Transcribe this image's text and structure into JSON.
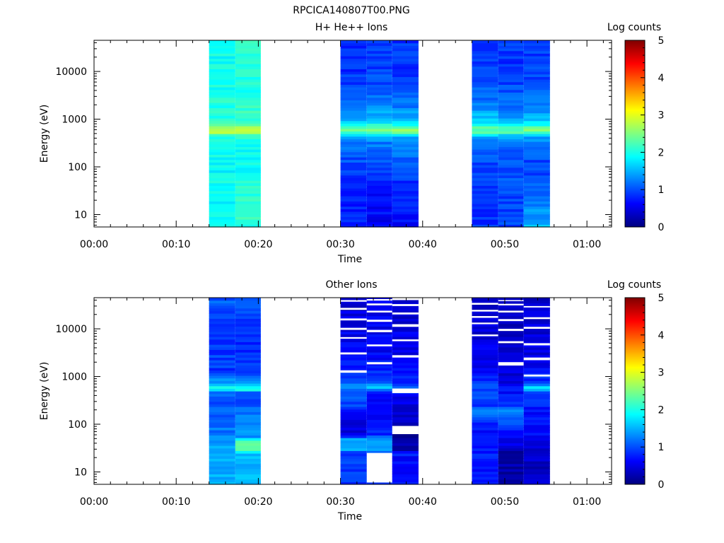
{
  "figure_title": "RPCICA140807T00.PNG",
  "colormap": [
    "#00007f",
    "#0000ff",
    "#0080ff",
    "#00ffff",
    "#80ff80",
    "#ffff00",
    "#ff8000",
    "#ff0000",
    "#7f0000"
  ],
  "chart_data": [
    {
      "type": "heatmap",
      "title": "H+ He++ Ions",
      "xlabel": "Time",
      "ylabel": "Energy (eV)",
      "xlim": [
        0,
        63
      ],
      "x_ticks": [
        "00:00",
        "00:10",
        "00:20",
        "00:30",
        "00:40",
        "00:50",
        "01:00"
      ],
      "y_scale": "log",
      "ylim": [
        5.5,
        45000
      ],
      "y_ticks": [
        "10",
        "100",
        "1000",
        "10000"
      ],
      "colorbar": {
        "label": "Log counts",
        "range": [
          0,
          5
        ],
        "ticks": [
          "0",
          "1",
          "2",
          "3",
          "4",
          "5"
        ]
      },
      "columns": [
        {
          "t0": 14,
          "t1": 17.2,
          "profile": [
            [
              6,
              1.9
            ],
            [
              30,
              1.9
            ],
            [
              60,
              1.9
            ],
            [
              120,
              1.85
            ],
            [
              280,
              2.0
            ],
            [
              470,
              2.1
            ],
            [
              560,
              2.9
            ],
            [
              680,
              2.7
            ],
            [
              800,
              2.1
            ],
            [
              1500,
              2.05
            ],
            [
              2500,
              2.0
            ],
            [
              6000,
              1.95
            ],
            [
              45000,
              1.9
            ]
          ]
        },
        {
          "t0": 17.2,
          "t1": 20.3,
          "profile": [
            [
              6,
              2.1
            ],
            [
              30,
              2.05
            ],
            [
              60,
              1.95
            ],
            [
              150,
              1.9
            ],
            [
              300,
              2.0
            ],
            [
              470,
              2.1
            ],
            [
              560,
              2.9
            ],
            [
              680,
              2.75
            ],
            [
              800,
              2.2
            ],
            [
              1500,
              2.1
            ],
            [
              3000,
              2.0
            ],
            [
              8000,
              2.0
            ],
            [
              45000,
              2.1
            ]
          ]
        },
        {
          "t0": 30,
          "t1": 33.2,
          "profile": [
            [
              6,
              0.75
            ],
            [
              25,
              0.8
            ],
            [
              60,
              0.9
            ],
            [
              150,
              1.0
            ],
            [
              300,
              1.2
            ],
            [
              450,
              1.4
            ],
            [
              560,
              2.5
            ],
            [
              700,
              2.2
            ],
            [
              900,
              1.6
            ],
            [
              2000,
              1.2
            ],
            [
              6000,
              0.9
            ],
            [
              20000,
              0.8
            ],
            [
              45000,
              0.9
            ]
          ]
        },
        {
          "t0": 33.2,
          "t1": 36.3,
          "profile": [
            [
              6,
              0.6
            ],
            [
              25,
              0.7
            ],
            [
              60,
              0.8
            ],
            [
              150,
              1.0
            ],
            [
              300,
              1.2
            ],
            [
              450,
              1.5
            ],
            [
              560,
              2.6
            ],
            [
              700,
              2.3
            ],
            [
              900,
              1.6
            ],
            [
              2000,
              1.3
            ],
            [
              6000,
              1.0
            ],
            [
              20000,
              0.9
            ],
            [
              45000,
              0.95
            ]
          ]
        },
        {
          "t0": 36.3,
          "t1": 39.5,
          "profile": [
            [
              6,
              0.65
            ],
            [
              25,
              0.75
            ],
            [
              60,
              0.9
            ],
            [
              150,
              1.1
            ],
            [
              300,
              1.2
            ],
            [
              450,
              1.5
            ],
            [
              560,
              2.6
            ],
            [
              700,
              2.3
            ],
            [
              900,
              1.6
            ],
            [
              2000,
              1.2
            ],
            [
              6000,
              0.95
            ],
            [
              20000,
              0.85
            ],
            [
              45000,
              0.9
            ]
          ]
        },
        {
          "t0": 46,
          "t1": 49.2,
          "profile": [
            [
              6,
              0.9
            ],
            [
              25,
              0.8
            ],
            [
              60,
              0.9
            ],
            [
              150,
              1.0
            ],
            [
              300,
              1.2
            ],
            [
              450,
              1.5
            ],
            [
              560,
              2.4
            ],
            [
              700,
              2.2
            ],
            [
              900,
              1.7
            ],
            [
              2000,
              1.2
            ],
            [
              6000,
              1.0
            ],
            [
              20000,
              0.9
            ],
            [
              45000,
              0.85
            ]
          ]
        },
        {
          "t0": 49.2,
          "t1": 52.3,
          "profile": [
            [
              6,
              0.95
            ],
            [
              25,
              0.95
            ],
            [
              60,
              1.0
            ],
            [
              150,
              1.05
            ],
            [
              300,
              1.2
            ],
            [
              450,
              1.5
            ],
            [
              560,
              2.4
            ],
            [
              700,
              2.2
            ],
            [
              900,
              1.5
            ],
            [
              2000,
              1.2
            ],
            [
              6000,
              0.95
            ],
            [
              20000,
              0.85
            ],
            [
              45000,
              0.9
            ]
          ]
        },
        {
          "t0": 52.3,
          "t1": 55.5,
          "profile": [
            [
              6,
              1.5
            ],
            [
              25,
              1.2
            ],
            [
              60,
              0.9
            ],
            [
              150,
              1.0
            ],
            [
              300,
              1.2
            ],
            [
              450,
              1.5
            ],
            [
              560,
              2.6
            ],
            [
              700,
              2.3
            ],
            [
              900,
              1.6
            ],
            [
              2000,
              1.2
            ],
            [
              6000,
              1.0
            ],
            [
              20000,
              0.9
            ],
            [
              45000,
              0.95
            ]
          ]
        }
      ]
    },
    {
      "type": "heatmap",
      "title": "Other Ions",
      "xlabel": "Time",
      "ylabel": "Energy (eV)",
      "xlim": [
        0,
        63
      ],
      "x_ticks": [
        "00:00",
        "00:10",
        "00:20",
        "00:30",
        "00:40",
        "00:50",
        "01:00"
      ],
      "y_scale": "log",
      "ylim": [
        5.5,
        45000
      ],
      "y_ticks": [
        "10",
        "100",
        "1000",
        "10000"
      ],
      "colorbar": {
        "label": "Log counts",
        "range": [
          0,
          5
        ],
        "ticks": [
          "0",
          "1",
          "2",
          "3",
          "4",
          "5"
        ]
      },
      "columns": [
        {
          "t0": 14,
          "t1": 17.2,
          "profile": [
            [
              6,
              1.5
            ],
            [
              40,
              1.5
            ],
            [
              60,
              1.25
            ],
            [
              150,
              1.1
            ],
            [
              300,
              1.0
            ],
            [
              480,
              1.1
            ],
            [
              560,
              2.0
            ],
            [
              700,
              1.5
            ],
            [
              1200,
              0.9
            ],
            [
              5000,
              0.9
            ],
            [
              20000,
              1.0
            ],
            [
              45000,
              1.05
            ]
          ]
        },
        {
          "t0": 17.2,
          "t1": 20.3,
          "profile": [
            [
              6,
              1.5
            ],
            [
              25,
              1.5
            ],
            [
              30,
              2.4
            ],
            [
              45,
              2.4
            ],
            [
              55,
              1.4
            ],
            [
              150,
              1.2
            ],
            [
              300,
              1.0
            ],
            [
              480,
              1.2
            ],
            [
              560,
              2.2
            ],
            [
              700,
              1.6
            ],
            [
              1200,
              0.9
            ],
            [
              5000,
              0.85
            ],
            [
              20000,
              0.95
            ],
            [
              45000,
              1.0
            ]
          ]
        },
        {
          "t0": 30,
          "t1": 33.2,
          "profile": [
            [
              6,
              0.85
            ],
            [
              25,
              0.9
            ],
            [
              30,
              1.45
            ],
            [
              50,
              1.45
            ],
            [
              60,
              0.4
            ],
            [
              100,
              0.5
            ],
            [
              200,
              0.8
            ],
            [
              500,
              1.2
            ],
            [
              600,
              1.4
            ],
            [
              800,
              0.9
            ],
            [
              3000,
              0.6
            ],
            [
              45000,
              0.4
            ]
          ],
          "gaps": [
            [
              1200,
              1350
            ],
            [
              2900,
              3200
            ],
            [
              6200,
              6700
            ],
            [
              9500,
              10500
            ],
            [
              15000,
              16500
            ],
            [
              25000,
              27500
            ],
            [
              37000,
              40000
            ]
          ]
        },
        {
          "t0": 33.2,
          "t1": 36.3,
          "profile": [
            [
              6,
              0.85
            ],
            [
              25,
              0.85
            ],
            [
              30,
              1.45
            ],
            [
              50,
              1.45
            ],
            [
              60,
              0.7
            ],
            [
              100,
              0.75
            ],
            [
              200,
              0.6
            ],
            [
              500,
              0.8
            ],
            [
              600,
              1.5
            ],
            [
              800,
              0.9
            ],
            [
              3000,
              0.6
            ],
            [
              45000,
              0.5
            ]
          ],
          "gaps": [
            [
              6,
              25
            ],
            [
              1800,
              2000
            ],
            [
              4300,
              4700
            ],
            [
              8500,
              9500
            ],
            [
              14000,
              15500
            ],
            [
              22000,
              24000
            ],
            [
              31000,
              34000
            ],
            [
              39000,
              42000
            ]
          ]
        },
        {
          "t0": 36.3,
          "t1": 39.5,
          "profile": [
            [
              6,
              0.7
            ],
            [
              25,
              0.7
            ],
            [
              30,
              0.2
            ],
            [
              60,
              0.2
            ],
            [
              200,
              0.45
            ],
            [
              500,
              0.7
            ],
            [
              600,
              1.0
            ],
            [
              800,
              0.8
            ],
            [
              3000,
              0.55
            ],
            [
              45000,
              0.4
            ]
          ],
          "gaps": [
            [
              62,
              92
            ],
            [
              450,
              560
            ],
            [
              2500,
              2800
            ],
            [
              5500,
              6000
            ],
            [
              11000,
              12500
            ],
            [
              20000,
              22000
            ],
            [
              30000,
              33000
            ],
            [
              40000,
              45000
            ]
          ]
        },
        {
          "t0": 46,
          "t1": 49.2,
          "profile": [
            [
              6,
              0.7
            ],
            [
              25,
              0.75
            ],
            [
              60,
              0.6
            ],
            [
              120,
              0.8
            ],
            [
              180,
              1.3
            ],
            [
              250,
              0.9
            ],
            [
              600,
              1.0
            ],
            [
              900,
              0.7
            ],
            [
              3000,
              0.5
            ],
            [
              45000,
              0.35
            ]
          ],
          "gaps": [
            [
              7000,
              7600
            ],
            [
              12500,
              13500
            ],
            [
              17000,
              18500
            ],
            [
              23000,
              25000
            ],
            [
              32000,
              35000
            ]
          ]
        },
        {
          "t0": 49.2,
          "t1": 52.3,
          "profile": [
            [
              6,
              0.2
            ],
            [
              25,
              0.2
            ],
            [
              60,
              0.75
            ],
            [
              120,
              0.95
            ],
            [
              180,
              1.4
            ],
            [
              250,
              0.8
            ],
            [
              600,
              0.6
            ],
            [
              900,
              0.5
            ],
            [
              3000,
              0.4
            ],
            [
              45000,
              0.3
            ]
          ],
          "gaps": [
            [
              1700,
              2000
            ],
            [
              5000,
              5500
            ],
            [
              9000,
              10000
            ],
            [
              14500,
              16000
            ],
            [
              22000,
              24000
            ],
            [
              31000,
              33500
            ],
            [
              38000,
              40000
            ]
          ]
        },
        {
          "t0": 52.3,
          "t1": 55.5,
          "profile": [
            [
              6,
              0.35
            ],
            [
              25,
              0.35
            ],
            [
              60,
              0.6
            ],
            [
              150,
              0.7
            ],
            [
              300,
              0.8
            ],
            [
              500,
              1.0
            ],
            [
              560,
              1.9
            ],
            [
              700,
              1.0
            ],
            [
              1200,
              0.7
            ],
            [
              3000,
              0.5
            ],
            [
              45000,
              0.35
            ]
          ],
          "gaps": [
            [
              1000,
              1100
            ],
            [
              2200,
              2500
            ],
            [
              4500,
              5000
            ],
            [
              10000,
              11000
            ],
            [
              16000,
              17500
            ],
            [
              28000,
              30000
            ]
          ]
        }
      ]
    }
  ]
}
